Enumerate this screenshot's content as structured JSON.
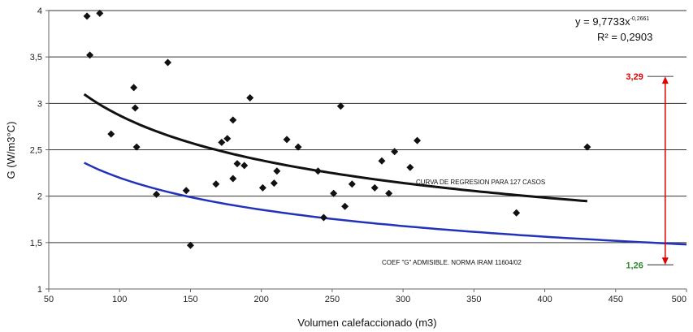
{
  "chart_data": {
    "type": "scatter",
    "xlabel": "Volumen calefaccionado (m3)",
    "ylabel": "G (W/m3°C)",
    "xlim": [
      50,
      500
    ],
    "ylim": [
      1,
      4
    ],
    "x_ticks": [
      50,
      100,
      150,
      200,
      250,
      300,
      350,
      400,
      450,
      500
    ],
    "x_tick_labels": [
      "50",
      "100",
      "150",
      "200",
      "250",
      "300",
      "350",
      "400",
      "450",
      "500"
    ],
    "y_ticks": [
      1,
      1.5,
      2,
      2.5,
      3,
      3.5,
      4
    ],
    "y_tick_labels": [
      "1",
      "1,5",
      "2",
      "2,5",
      "3",
      "3,5",
      "4"
    ],
    "grid": "horizontal",
    "points": [
      {
        "x": 77,
        "y": 3.94
      },
      {
        "x": 79,
        "y": 3.52
      },
      {
        "x": 86,
        "y": 3.97
      },
      {
        "x": 94,
        "y": 2.67
      },
      {
        "x": 110,
        "y": 3.17
      },
      {
        "x": 111,
        "y": 2.95
      },
      {
        "x": 112,
        "y": 2.53
      },
      {
        "x": 126,
        "y": 2.02
      },
      {
        "x": 134,
        "y": 3.44
      },
      {
        "x": 147,
        "y": 2.06
      },
      {
        "x": 150,
        "y": 1.47
      },
      {
        "x": 168,
        "y": 2.13
      },
      {
        "x": 172,
        "y": 2.58
      },
      {
        "x": 176,
        "y": 2.62
      },
      {
        "x": 180,
        "y": 2.82
      },
      {
        "x": 180,
        "y": 2.19
      },
      {
        "x": 183,
        "y": 2.35
      },
      {
        "x": 188,
        "y": 2.33
      },
      {
        "x": 192,
        "y": 3.06
      },
      {
        "x": 201,
        "y": 2.09
      },
      {
        "x": 209,
        "y": 2.14
      },
      {
        "x": 211,
        "y": 2.27
      },
      {
        "x": 218,
        "y": 2.61
      },
      {
        "x": 226,
        "y": 2.53
      },
      {
        "x": 240,
        "y": 2.27
      },
      {
        "x": 244,
        "y": 1.77
      },
      {
        "x": 251,
        "y": 2.03
      },
      {
        "x": 256,
        "y": 2.97
      },
      {
        "x": 259,
        "y": 1.89
      },
      {
        "x": 264,
        "y": 2.13
      },
      {
        "x": 280,
        "y": 2.09
      },
      {
        "x": 285,
        "y": 2.38
      },
      {
        "x": 290,
        "y": 2.03
      },
      {
        "x": 294,
        "y": 2.48
      },
      {
        "x": 305,
        "y": 2.31
      },
      {
        "x": 310,
        "y": 2.6
      },
      {
        "x": 380,
        "y": 1.82
      },
      {
        "x": 430,
        "y": 2.53
      }
    ],
    "regression": {
      "coef": 9.7733,
      "exponent": -0.2661,
      "x_range": [
        75,
        430
      ],
      "color": "#111111",
      "label": "CURVA DE REGRESION PARA 127 CASOS"
    },
    "admissible_curve": {
      "x_start": 75,
      "y_start": 2.36,
      "x_end": 500,
      "y_end": 1.48,
      "color": "#2233bb",
      "label": "COEF \"G\" ADMISIBLE. NORMA IRAM 11604/02"
    },
    "equation": {
      "line1_prefix": "y = 9,7733x",
      "line1_exponent": "-0,2661",
      "line2": "R² = 0,2903"
    },
    "range_marker": {
      "x": 485,
      "top_value": 3.29,
      "top_label": "3,29",
      "bottom_value": 1.26,
      "bottom_label": "1,26",
      "color": "#e00000",
      "top_label_color": "#e00000",
      "bottom_label_color": "#2f8a2f"
    }
  }
}
